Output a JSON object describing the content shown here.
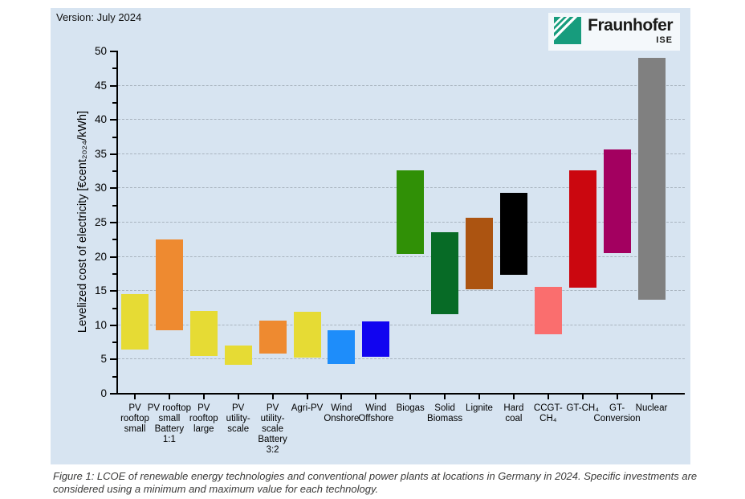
{
  "version_label": "Version: July 2024",
  "logo": {
    "brand": "Fraunhofer",
    "institute": "ISE",
    "brand_color": "#179c7d"
  },
  "caption": {
    "line1": "Figure 1:  LCOE of renewable energy technologies and conventional power plants at locations in Germany in 2024. Specific investments are",
    "line2": "considered using a minimum and maximum value for each technology."
  },
  "colors": {
    "panel_bg": "#d7e4f1",
    "grid": "#a9b4bf",
    "axis": "#000000"
  },
  "chart_data": {
    "type": "bar",
    "subtype": "floating min-max range bars",
    "title": "",
    "xlabel": "",
    "ylabel": "Levelized cost of electricity [€cent₂₀₂₄/kWh]",
    "ylim": [
      0,
      50
    ],
    "ytick_major_step": 5,
    "ytick_minor_step": 2.5,
    "grid": "horizontal dashed lines every 5",
    "legend": "none",
    "unit": "€cent2024/kWh",
    "categories": [
      "PV rooftop small",
      "PV rooftop small Battery 1:1",
      "PV rooftop large",
      "PV utility-scale",
      "PV utility-scale Battery 3:2",
      "Agri-PV",
      "Wind Onshore",
      "Wind Offshore",
      "Biogas",
      "Solid Biomass",
      "Lignite",
      "Hard coal",
      "CCGT-CH₄",
      "GT-CH₄",
      "GT-Conversion",
      "Nuclear"
    ],
    "bars": [
      {
        "category": "PV rooftop small",
        "label_lines": [
          "PV",
          "rooftop",
          "small"
        ],
        "min": 6.3,
        "max": 14.4,
        "color": "#e6db34"
      },
      {
        "category": "PV rooftop small Battery 1:1",
        "label_lines": [
          "PV rooftop",
          "small",
          "Battery",
          "1:1"
        ],
        "min": 9.1,
        "max": 22.4,
        "color": "#ee8a30"
      },
      {
        "category": "PV rooftop large",
        "label_lines": [
          "PV",
          "rooftop",
          "large"
        ],
        "min": 5.4,
        "max": 12.0,
        "color": "#e6db34"
      },
      {
        "category": "PV utility-scale",
        "label_lines": [
          "PV",
          "utility-",
          "scale"
        ],
        "min": 4.1,
        "max": 6.9,
        "color": "#e6db34"
      },
      {
        "category": "PV utility-scale Battery 3:2",
        "label_lines": [
          "PV",
          "utility-",
          "scale",
          "Battery",
          "3:2"
        ],
        "min": 5.8,
        "max": 10.6,
        "color": "#ee8a30"
      },
      {
        "category": "Agri-PV",
        "label_lines": [
          "Agri-PV"
        ],
        "min": 5.2,
        "max": 11.9,
        "color": "#e6db34"
      },
      {
        "category": "Wind Onshore",
        "label_lines": [
          "Wind",
          "Onshore"
        ],
        "min": 4.2,
        "max": 9.2,
        "color": "#1e8dfa"
      },
      {
        "category": "Wind Offshore",
        "label_lines": [
          "Wind",
          "Offshore"
        ],
        "min": 5.3,
        "max": 10.4,
        "color": "#1104f0"
      },
      {
        "category": "Biogas",
        "label_lines": [
          "Biogas"
        ],
        "min": 20.3,
        "max": 32.5,
        "color": "#309006"
      },
      {
        "category": "Solid Biomass",
        "label_lines": [
          "Solid",
          "Biomass"
        ],
        "min": 11.5,
        "max": 23.5,
        "color": "#076b26"
      },
      {
        "category": "Lignite",
        "label_lines": [
          "Lignite"
        ],
        "min": 15.1,
        "max": 25.6,
        "color": "#ac5411"
      },
      {
        "category": "Hard coal",
        "label_lines": [
          "Hard",
          "coal"
        ],
        "min": 17.3,
        "max": 29.2,
        "color": "#000000"
      },
      {
        "category": "CCGT-CH₄",
        "label_lines": [
          "CCGT-",
          "CH₄"
        ],
        "min": 8.6,
        "max": 15.5,
        "color": "#fa6e6e"
      },
      {
        "category": "GT-CH₄",
        "label_lines": [
          "GT-CH₄"
        ],
        "min": 15.4,
        "max": 32.5,
        "color": "#cb070f"
      },
      {
        "category": "GT-Conversion",
        "label_lines": [
          "GT-",
          "Conversion"
        ],
        "min": 20.4,
        "max": 35.6,
        "color": "#a30060"
      },
      {
        "category": "Nuclear",
        "label_lines": [
          "Nuclear"
        ],
        "min": 13.6,
        "max": 48.9,
        "color": "#808080"
      }
    ]
  }
}
